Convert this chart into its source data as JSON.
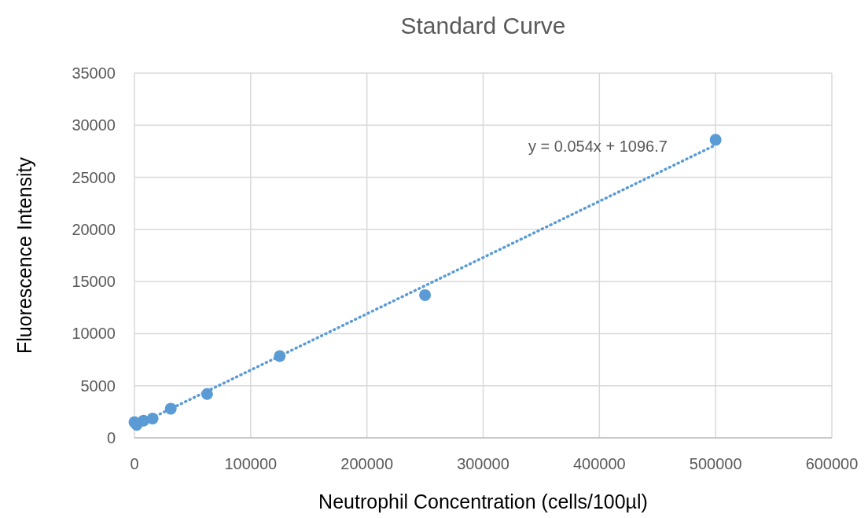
{
  "chart_data": {
    "type": "scatter",
    "title": "Standard Curve",
    "xlabel": "Neutrophil Concentration (cells/100µl)",
    "ylabel": "Fluorescence Intensity",
    "xlim": [
      0,
      600000
    ],
    "xticks": [
      0,
      100000,
      200000,
      300000,
      400000,
      500000,
      600000
    ],
    "ylim": [
      0,
      35000
    ],
    "yticks": [
      0,
      5000,
      10000,
      15000,
      20000,
      25000,
      30000,
      35000
    ],
    "grid": true,
    "series": [
      {
        "marker": "circle",
        "color": "#5b9bd5",
        "x": [
          0,
          1953,
          7812,
          15625,
          31250,
          62500,
          125000,
          250000,
          500000
        ],
        "values": [
          1500,
          1250,
          1650,
          1850,
          2800,
          4200,
          7850,
          13700,
          28600
        ]
      },
      {
        "type": "line",
        "color": "#5b9bd5",
        "line_style": "dotted",
        "x": [
          0,
          500000
        ],
        "values": [
          1100,
          28100
        ]
      }
    ],
    "annotations": [
      "y = 0.054x + 1096.7"
    ]
  }
}
